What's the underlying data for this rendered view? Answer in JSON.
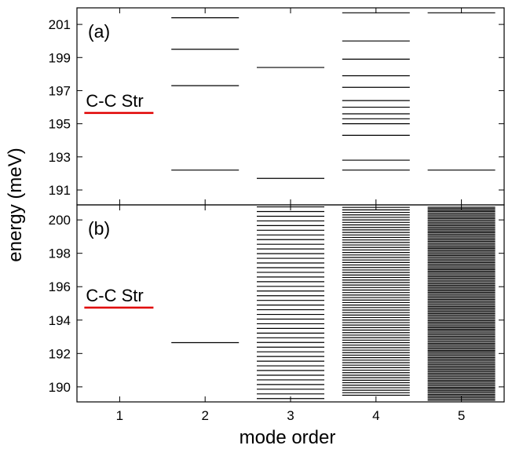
{
  "chart_data": {
    "type": "energy-level",
    "xlabel": "mode order",
    "ylabel": "energy (meV)",
    "x_ticks": [
      "1",
      "2",
      "3",
      "4",
      "5"
    ],
    "line_color": "#000000",
    "marker_color": "#e00000",
    "panels": [
      {
        "label": "(a)",
        "ylim": [
          190.1,
          202
        ],
        "y_ticks": [
          191,
          193,
          195,
          197,
          199,
          201
        ],
        "annotation": {
          "text": "C-C Str",
          "energy": 195.65
        },
        "levels": {
          "1": [],
          "2": [
            192.2,
            197.3,
            199.5,
            201.4
          ],
          "3": [
            191.7,
            198.4
          ],
          "4": [
            192.2,
            192.8,
            194.3,
            195.0,
            195.3,
            195.6,
            196.0,
            196.4,
            197.2,
            197.9,
            198.9,
            200.0,
            201.7
          ],
          "5": [
            192.2,
            201.7
          ]
        }
      },
      {
        "label": "(b)",
        "ylim": [
          189.1,
          200.9
        ],
        "y_ticks": [
          190,
          192,
          194,
          196,
          198,
          200
        ],
        "annotation": {
          "text": "C-C Str",
          "energy": 194.75
        },
        "levels": {
          "1": [],
          "2": [
            192.65
          ],
          "3": {
            "dense": true,
            "start": 189.3,
            "end": 200.8,
            "step": 0.28
          },
          "4": {
            "dense": true,
            "start": 189.5,
            "end": 200.8,
            "step": 0.15
          },
          "5": {
            "dense": true,
            "start": 189.2,
            "end": 200.8,
            "step": 0.085
          }
        }
      }
    ]
  }
}
